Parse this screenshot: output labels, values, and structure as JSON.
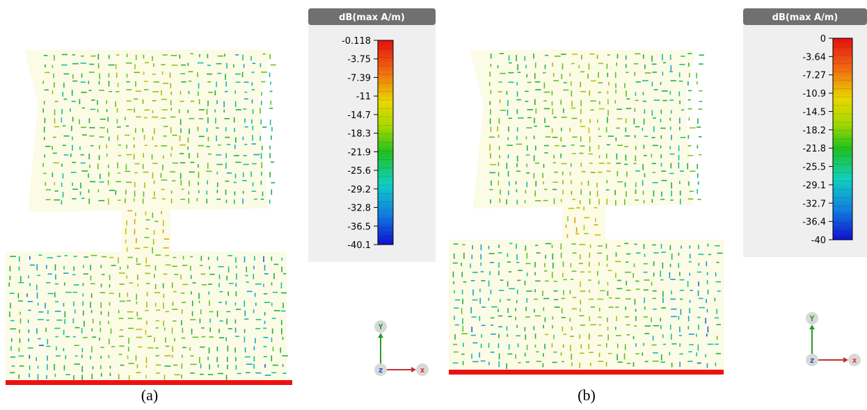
{
  "panels": [
    {
      "caption": "(a)",
      "legend": {
        "title": "dB(max A/m)",
        "ticks": [
          "-0.118",
          "-3.75",
          "-7.39",
          "-11",
          "-14.7",
          "-18.3",
          "-21.9",
          "-25.6",
          "-29.2",
          "-32.8",
          "-36.5",
          "-40.1"
        ]
      },
      "axes": {
        "y": "Y",
        "z": "z",
        "x": "x"
      }
    },
    {
      "caption": "(b)",
      "legend": {
        "title": "dB(max A/m)",
        "ticks": [
          "0",
          "-3.64",
          "-7.27",
          "-10.9",
          "-14.5",
          "-18.2",
          "-21.8",
          "-25.5",
          "-29.1",
          "-32.7",
          "-36.4",
          "-40"
        ]
      },
      "axes": {
        "y": "Y",
        "z": "z",
        "x": "x"
      }
    }
  ]
}
